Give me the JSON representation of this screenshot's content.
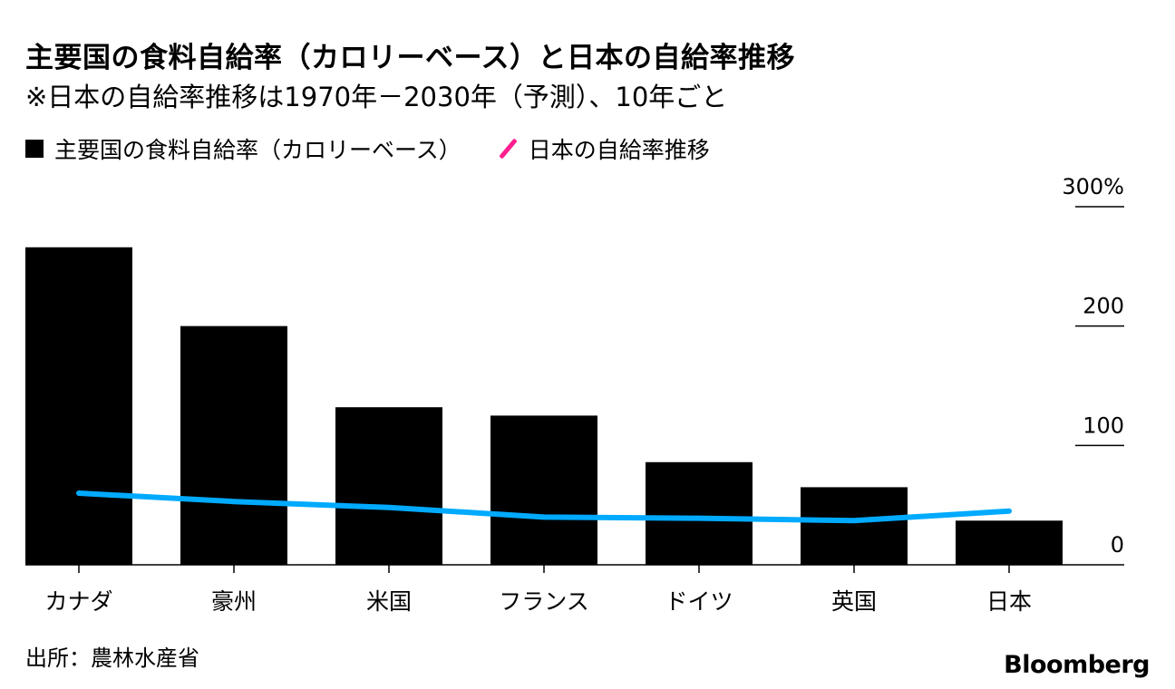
{
  "chart_data": {
    "type": "bar",
    "title": "主要国の食料自給率（カロリーベース）と日本の自給率推移",
    "subtitle": "※日本の自給率推移は1970年－2030年（予測）、10年ごと",
    "categories": [
      "カナダ",
      "豪州",
      "米国",
      "フランス",
      "ドイツ",
      "英国",
      "日本"
    ],
    "series": [
      {
        "name": "主要国の食料自給率（カロリーベース）",
        "kind": "bar",
        "color": "#000000",
        "values": [
          266,
          200,
          132,
          125,
          86,
          65,
          37
        ]
      },
      {
        "name": "日本の自給率推移",
        "kind": "line",
        "color": "#00aaff",
        "legend_color": "#ff1f8e",
        "values": [
          60,
          53,
          48,
          40,
          39,
          37,
          45
        ]
      }
    ],
    "ylim": [
      0,
      300
    ],
    "yticks": [
      {
        "value": 0,
        "label": "0"
      },
      {
        "value": 100,
        "label": "100"
      },
      {
        "value": 200,
        "label": "200"
      },
      {
        "value": 300,
        "label": "300%"
      }
    ],
    "xlabel": "",
    "ylabel": "",
    "legend_position": "top-left",
    "source": "出所：農林水産省",
    "brand": "Bloomberg"
  }
}
